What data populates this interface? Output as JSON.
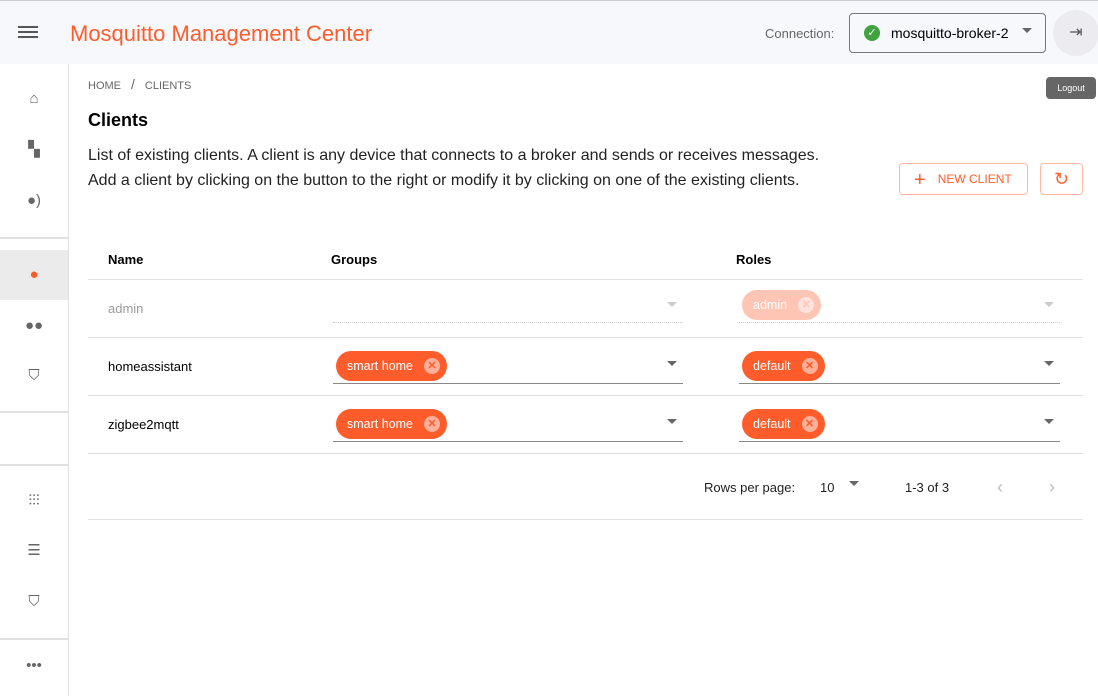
{
  "header": {
    "title": "Mosquitto Management Center",
    "connection_label": "Connection:",
    "connection_value": "mosquitto-broker-2",
    "logout_tooltip": "Logout"
  },
  "sidebar": {
    "items": [
      {
        "icon": "home-icon"
      },
      {
        "icon": "topology-icon"
      },
      {
        "icon": "client-voice-icon"
      },
      {
        "icon": "person-icon",
        "selected": true
      },
      {
        "icon": "group-icon"
      },
      {
        "icon": "role-shield-icon"
      },
      {
        "icon": "tune-icon"
      },
      {
        "icon": "storage-icon"
      },
      {
        "icon": "verified-shield-icon"
      },
      {
        "icon": "more-icon"
      }
    ]
  },
  "breadcrumb": [
    "HOME",
    "/",
    "CLIENTS"
  ],
  "page": {
    "title": "Clients",
    "description": "List of existing clients. A client is any device that connects to a broker and sends or receives messages. Add a client by clicking on the button to the right or modify it by clicking on one of the existing clients.",
    "new_client": "NEW CLIENT"
  },
  "table": {
    "headers": [
      "Name",
      "Groups",
      "Roles"
    ],
    "rows": [
      {
        "name": "admin",
        "groups": [],
        "roles": [
          "admin"
        ],
        "disabled": true
      },
      {
        "name": "homeassistant",
        "groups": [
          "smart home"
        ],
        "roles": [
          "default"
        ]
      },
      {
        "name": "zigbee2mqtt",
        "groups": [
          "smart home"
        ],
        "roles": [
          "default"
        ]
      }
    ]
  },
  "pagination": {
    "rows_label": "Rows per page:",
    "rows_value": "10",
    "range": "1-3 of 3"
  },
  "colors": {
    "accent": "#ff5c2b",
    "ok": "#3fa33f"
  }
}
